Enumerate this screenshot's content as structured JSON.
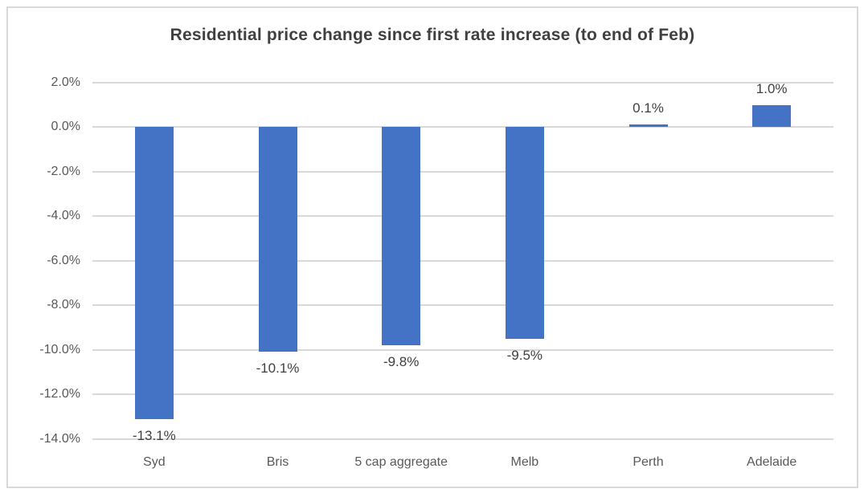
{
  "chart_data": {
    "type": "bar",
    "title": "Residential price change since first rate increase (to end of Feb)",
    "categories": [
      "Syd",
      "Bris",
      "5 cap aggregate",
      "Melb",
      "Perth",
      "Adelaide"
    ],
    "values": [
      -13.1,
      -10.1,
      -9.8,
      -9.5,
      0.1,
      1.0
    ],
    "data_labels": [
      "-13.1%",
      "-10.1%",
      "-9.8%",
      "-9.5%",
      "0.1%",
      "1.0%"
    ],
    "ytick_labels": [
      "2.0%",
      "0.0%",
      "-2.0%",
      "-4.0%",
      "-6.0%",
      "-8.0%",
      "-10.0%",
      "-12.0%",
      "-14.0%"
    ],
    "xlabel": "",
    "ylabel": "",
    "ylim": [
      -14,
      2
    ],
    "ytick_step": 2,
    "grid": true,
    "legend": "none",
    "colors": {
      "bar": "#4472C4",
      "gridline": "#D9D9D9",
      "axis_text": "#595959",
      "data_label_text": "#404040",
      "title_text": "#404040",
      "frame_border": "#D9D9D9",
      "background": "#FFFFFF"
    }
  }
}
